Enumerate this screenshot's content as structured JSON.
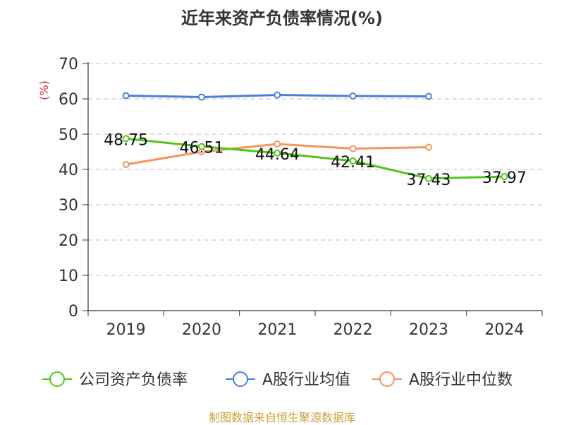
{
  "title": "近年来资产负债率情况(%)",
  "source": "制图数据来自恒生聚源数据库",
  "chart_data": {
    "type": "line",
    "title": "近年来资产负债率情况(%)",
    "ylabel": "(%)",
    "ylim": [
      0,
      70
    ],
    "yticks": [
      0,
      10,
      20,
      30,
      40,
      50,
      60,
      70
    ],
    "categories": [
      "2019",
      "2020",
      "2021",
      "2022",
      "2023",
      "2024"
    ],
    "grid": true,
    "legend_position": "bottom",
    "series": [
      {
        "name": "公司资产负债率",
        "color": "#52c41a",
        "values": [
          48.75,
          46.51,
          44.64,
          42.41,
          37.43,
          37.97
        ],
        "labels": [
          "48.75",
          "46.51",
          "44.64",
          "42.41",
          "37.43",
          "37.97"
        ]
      },
      {
        "name": "A股行业均值",
        "color": "#4a7fd6",
        "values": [
          60.9,
          60.5,
          61.1,
          60.8,
          60.7,
          null
        ]
      },
      {
        "name": "A股行业中位数",
        "color": "#f5945c",
        "values": [
          41.4,
          45.0,
          47.2,
          45.9,
          46.3,
          null
        ]
      }
    ]
  }
}
